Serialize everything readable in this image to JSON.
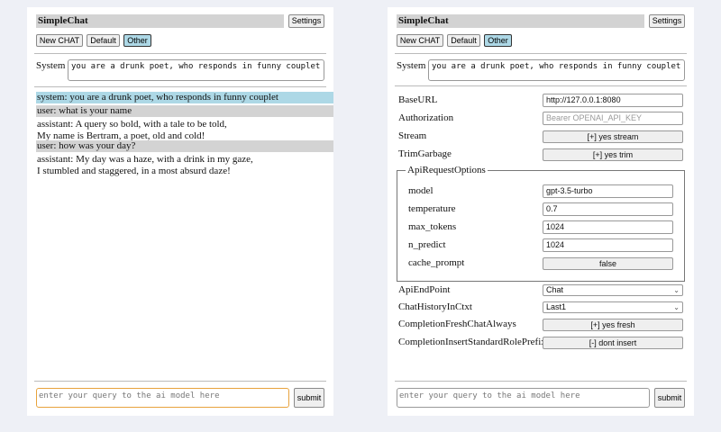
{
  "app_title": "SimpleChat",
  "settings_label": "Settings",
  "chat_buttons": [
    "New CHAT",
    "Default",
    "Other"
  ],
  "system_label": "System",
  "system_prompt": "you are a drunk poet, who responds in funny couplet",
  "messages": [
    {
      "role": "system",
      "lines": [
        "system: you are a drunk poet, who responds in funny couplet"
      ]
    },
    {
      "role": "user",
      "lines": [
        "user: what is your name"
      ]
    },
    {
      "role": "assistant",
      "lines": [
        "assistant: A query so bold, with a tale to be told,",
        "My name is Bertram, a poet, old and cold!"
      ]
    },
    {
      "role": "user",
      "lines": [
        "user: how was your day?"
      ]
    },
    {
      "role": "assistant",
      "lines": [
        "assistant: My day was a haze, with a drink in my gaze,",
        "I stumbled and staggered, in a most absurd daze!"
      ]
    }
  ],
  "query_placeholder": "enter your query to the ai model here",
  "submit_label": "submit",
  "settings": {
    "base_url": {
      "label": "BaseURL",
      "value": "http://127.0.0.1:8080"
    },
    "authorization": {
      "label": "Authorization",
      "placeholder": "Bearer OPENAI_API_KEY"
    },
    "stream": {
      "label": "Stream",
      "value": "[+] yes stream"
    },
    "trim_garbage": {
      "label": "TrimGarbage",
      "value": "[+] yes trim"
    },
    "api_request_options": {
      "legend": "ApiRequestOptions",
      "model": {
        "label": "model",
        "value": "gpt-3.5-turbo"
      },
      "temperature": {
        "label": "temperature",
        "value": "0.7"
      },
      "max_tokens": {
        "label": "max_tokens",
        "value": "1024"
      },
      "n_predict": {
        "label": "n_predict",
        "value": "1024"
      },
      "cache_prompt": {
        "label": "cache_prompt",
        "value": "false"
      }
    },
    "api_endpoint": {
      "label": "ApiEndPoint",
      "value": "Chat"
    },
    "chat_history": {
      "label": "ChatHistoryInCtxt",
      "value": "Last1"
    },
    "completion_fresh": {
      "label": "CompletionFreshChatAlways",
      "value": "[+] yes fresh"
    },
    "completion_insert": {
      "label": "CompletionInsertStandardRolePrefix",
      "value": "[-] dont insert"
    }
  },
  "colors": {
    "system_msg_bg": "#add8e6",
    "user_msg_bg": "#d3d3d3",
    "selected_btn": "#add8e6",
    "focus_border": "#e8a33d"
  }
}
